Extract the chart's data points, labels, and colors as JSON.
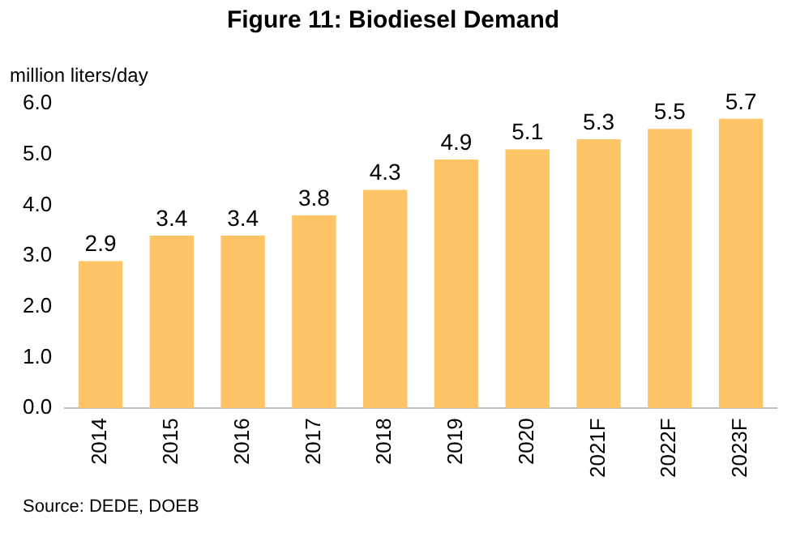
{
  "chart_data": {
    "type": "bar",
    "title": "Figure 11: Biodiesel Demand",
    "ylabel": "million liters/day",
    "categories": [
      "2014",
      "2015",
      "2016",
      "2017",
      "2018",
      "2019",
      "2020",
      "2021F",
      "2022F",
      "2023F"
    ],
    "values": [
      2.9,
      3.4,
      3.4,
      3.8,
      4.3,
      4.9,
      5.1,
      5.3,
      5.5,
      5.7
    ],
    "color": "#ffc466",
    "ylim": [
      0,
      6
    ],
    "yticks": [
      {
        "value": 0,
        "label": "0.0"
      },
      {
        "value": 1,
        "label": "1.0"
      },
      {
        "value": 2,
        "label": "2.0"
      },
      {
        "value": 3,
        "label": "3.0"
      },
      {
        "value": 4,
        "label": "4.0"
      },
      {
        "value": 5,
        "label": "5.0"
      },
      {
        "value": 6,
        "label": "6.0"
      }
    ],
    "grid": false,
    "legend": false,
    "data_labels": true,
    "annotations": [
      "Source: DEDE, DOEB"
    ]
  }
}
